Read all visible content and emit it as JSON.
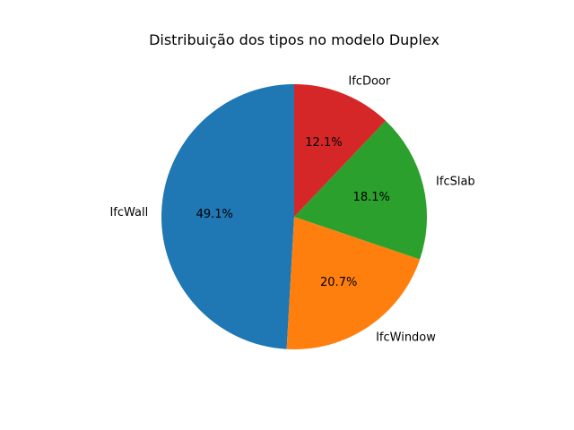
{
  "chart_data": {
    "type": "pie",
    "title": "Distribuição dos tipos no modelo Duplex",
    "categories": [
      "IfcWall",
      "IfcWindow",
      "IfcSlab",
      "IfcDoor"
    ],
    "values": [
      49.1,
      20.7,
      18.1,
      12.1
    ],
    "value_labels": [
      "49.1%",
      "20.7%",
      "18.1%",
      "12.1%"
    ],
    "colors": [
      "#1f77b4",
      "#ff7f0e",
      "#2ca02c",
      "#d62728"
    ],
    "start_angle": 90,
    "direction": "counterclockwise",
    "legend": "none"
  }
}
